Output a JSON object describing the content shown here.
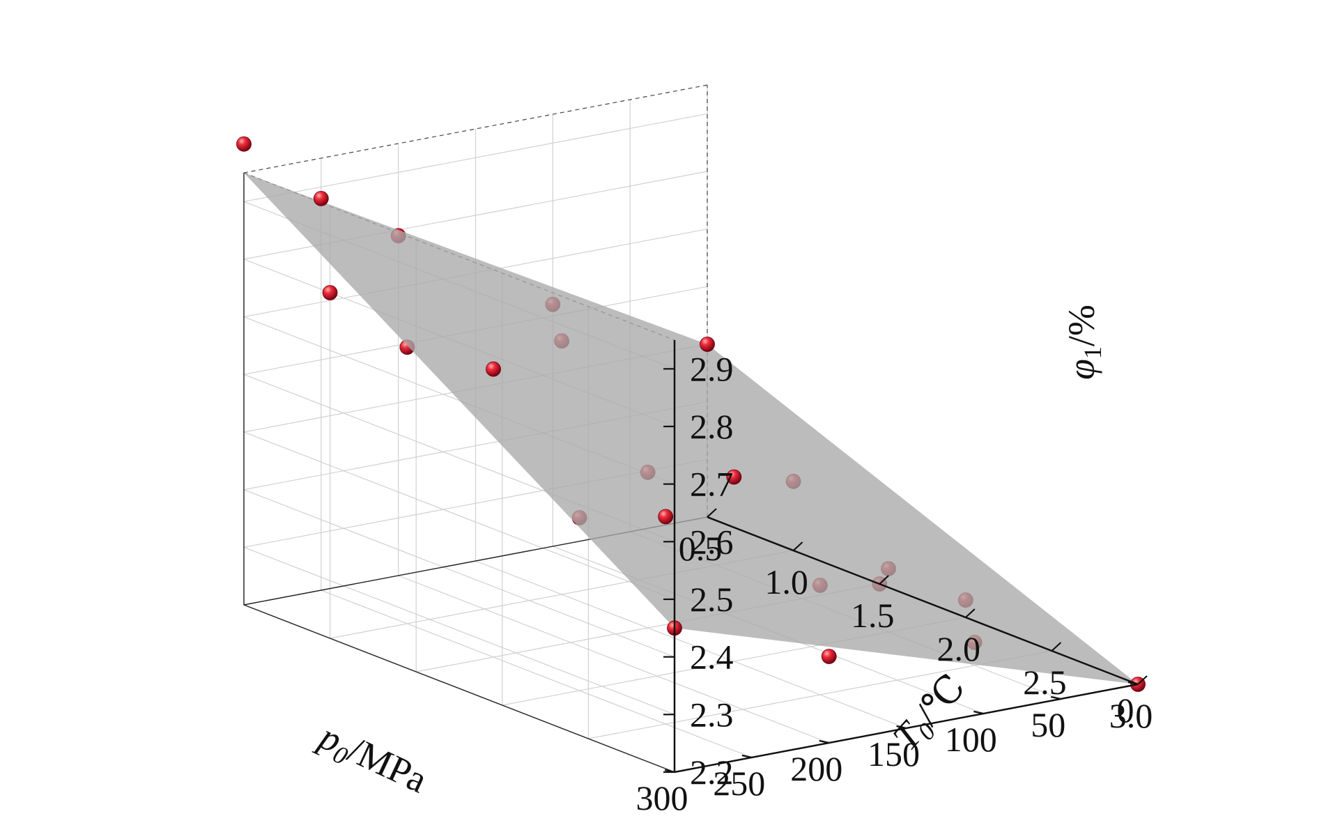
{
  "chart_data": {
    "type": "scatter",
    "surface_color": "#a9a9a9",
    "point_color": "#e0192e",
    "x_axis": {
      "label_var": "p",
      "label_sub": "0",
      "label_unit": "/MPa",
      "ticks": [
        "0.5",
        "1.0",
        "1.5",
        "2.0",
        "2.5",
        "3.0"
      ],
      "range": [
        0.5,
        3.0
      ]
    },
    "y_axis": {
      "label_var": "T",
      "label_sub": "0",
      "label_unit": "/℃",
      "ticks": [
        "0",
        "50",
        "100",
        "150",
        "200",
        "250",
        "300"
      ],
      "range": [
        0,
        300
      ]
    },
    "z_axis": {
      "label_var": "φ",
      "label_sub": "1",
      "label_unit": "/%",
      "ticks": [
        "2.2",
        "2.3",
        "2.4",
        "2.5",
        "2.6",
        "2.7",
        "2.8",
        "2.9"
      ],
      "range": [
        2.2,
        2.95
      ]
    },
    "surface_corners": [
      {
        "p": 0.5,
        "T": 0,
        "z": 2.5
      },
      {
        "p": 0.5,
        "T": 300,
        "z": 2.95
      },
      {
        "p": 3.0,
        "T": 300,
        "z": 2.45
      },
      {
        "p": 3.0,
        "T": 0,
        "z": 2.2
      }
    ],
    "points": [
      {
        "p": 0.5,
        "T": 300,
        "z": 3.0
      },
      {
        "p": 0.5,
        "T": 250,
        "z": 2.88
      },
      {
        "p": 0.5,
        "T": 200,
        "z": 2.79
      },
      {
        "p": 0.5,
        "T": 100,
        "z": 2.62
      },
      {
        "p": 0.5,
        "T": 0,
        "z": 2.5
      },
      {
        "p": 1.0,
        "T": 300,
        "z": 2.8
      },
      {
        "p": 1.0,
        "T": 250,
        "z": 2.68
      },
      {
        "p": 1.0,
        "T": 150,
        "z": 2.64
      },
      {
        "p": 1.0,
        "T": 0,
        "z": 2.32
      },
      {
        "p": 1.5,
        "T": 250,
        "z": 2.7
      },
      {
        "p": 1.5,
        "T": 150,
        "z": 2.47
      },
      {
        "p": 1.5,
        "T": 0,
        "z": 2.2
      },
      {
        "p": 2.0,
        "T": 250,
        "z": 2.5
      },
      {
        "p": 2.0,
        "T": 150,
        "z": 2.52
      },
      {
        "p": 2.0,
        "T": 50,
        "z": 2.31
      },
      {
        "p": 2.0,
        "T": 0,
        "z": 2.23
      },
      {
        "p": 2.5,
        "T": 250,
        "z": 2.56
      },
      {
        "p": 2.5,
        "T": 150,
        "z": 2.39
      },
      {
        "p": 2.5,
        "T": 50,
        "z": 2.24
      },
      {
        "p": 3.0,
        "T": 300,
        "z": 2.45
      },
      {
        "p": 3.0,
        "T": 200,
        "z": 2.35
      },
      {
        "p": 3.0,
        "T": 0,
        "z": 2.2
      }
    ]
  }
}
